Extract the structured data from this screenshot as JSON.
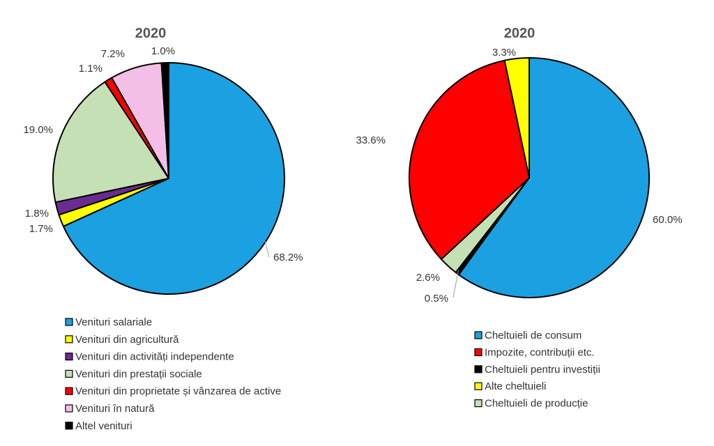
{
  "chart_data": [
    {
      "type": "pie",
      "title": "2020",
      "slices": [
        {
          "label": "Venituri salariale",
          "value": 68.2,
          "value_label": "68.2%",
          "color": "#1BA1E2"
        },
        {
          "label": "Venituri din agricultură",
          "value": 1.7,
          "value_label": "1.7%",
          "color": "#FFFF00"
        },
        {
          "label": "Venituri din activități independente",
          "value": 1.8,
          "value_label": "1.8%",
          "color": "#6A2C91"
        },
        {
          "label": "Venituri din prestații sociale",
          "value": 19.0,
          "value_label": "19.0%",
          "color": "#C5E0B4"
        },
        {
          "label": "Venituri din proprietate și vânzarea de active",
          "value": 1.1,
          "value_label": "1.1%",
          "color": "#FF0000"
        },
        {
          "label": "Venituri în natură",
          "value": 7.2,
          "value_label": "7.2%",
          "color": "#F4BFE6"
        },
        {
          "label": "Altel venituri",
          "value": 1.0,
          "value_label": "1.0%",
          "color": "#000000"
        }
      ],
      "legend_position": "bottom"
    },
    {
      "type": "pie",
      "title": "2020",
      "slices": [
        {
          "label": "Cheltuieli de consum",
          "value": 60.0,
          "value_label": "60.0%",
          "color": "#1BA1E2"
        },
        {
          "label": "Cheltuieli pentru investiții",
          "value": 0.5,
          "value_label": "0.5%",
          "color": "#000000"
        },
        {
          "label": "Cheltuieli de producție",
          "value": 2.6,
          "value_label": "2.6%",
          "color": "#C5E0B4"
        },
        {
          "label": "Impozite, contribuții etc.",
          "value": 33.6,
          "value_label": "33.6%",
          "color": "#FF0000"
        },
        {
          "label": "Alte cheltuieli",
          "value": 3.3,
          "value_label": "3.3%",
          "color": "#FFFF00"
        }
      ],
      "legend": [
        "Cheltuieli de consum",
        "Impozite, contribuții etc.",
        "Cheltuieli pentru investiții",
        "Alte cheltuieli",
        "Cheltuieli de producție"
      ],
      "legend_position": "bottom"
    }
  ]
}
